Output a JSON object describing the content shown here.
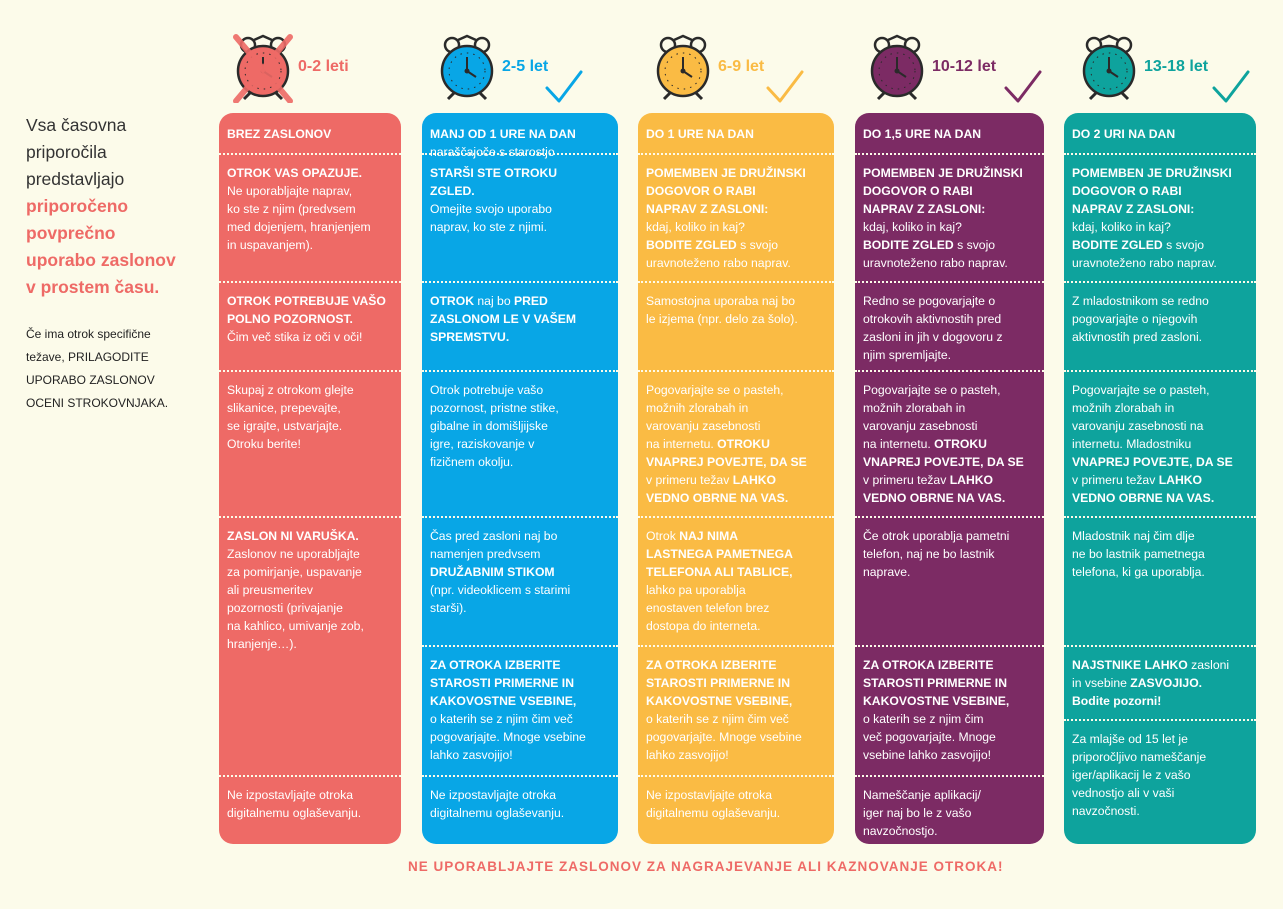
{
  "intro": {
    "lead_1": "Vsa časovna",
    "lead_2": "priporočila",
    "lead_3": "predstavljajo",
    "lead_4": "priporočeno",
    "lead_5": "povprečno",
    "lead_6": "uporabo zaslonov",
    "lead_7": "v prostem času.",
    "note_1": "Če ima otrok specifične",
    "note_2": "težave, PRILAGODITE",
    "note_3": "UPORABO ZASLONOV",
    "note_4": "OCENI STROKOVNJAKA."
  },
  "colors": {
    "c0": "#ee6a66",
    "c1": "#08a6e6",
    "c2": "#fabb44",
    "c3": "#7c2b64",
    "c4": "#0ea39d",
    "background": "#fcfbea"
  },
  "columns": [
    {
      "age": "0-2 leti",
      "icon": "crossed-alarm-clock-icon",
      "cells": [
        [
          "<b>BREZ ZASLONOV</b>"
        ],
        [
          "<b>OTROK VAS OPAZUJE.</b>",
          "Ne uporabljajte naprav,",
          "ko ste z njim (predvsem",
          "med dojenjem, hranjenjem",
          "in uspavanjem)."
        ],
        [
          "<b>OTROK POTREBUJE VAŠO</b>",
          "<b>POLNO POZORNOST.</b>",
          "Čim več stika iz oči v oči!"
        ],
        [
          "Skupaj z otrokom glejte",
          "slikanice, prepevajte,",
          "se igrajte, ustvarjajte.",
          "Otroku berite!"
        ],
        [
          "<b>ZASLON NI VARUŠKA.</b>",
          "Zaslonov ne uporabljajte",
          "za pomirjanje, uspavanje",
          "ali preusmeritev",
          "pozornosti (privajanje",
          "na kahlico, umivanje zob,",
          "hranjenje…)."
        ],
        [
          "Ne izpostavljajte otroka",
          "digitalnemu oglaševanju."
        ]
      ]
    },
    {
      "age": "2-5 let",
      "icon": "alarm-clock-icon",
      "cells": [
        [
          "<b>MANJ OD 1 URE NA DAN</b>",
          "naraščajoče s starostjo"
        ],
        [
          "<b>STARŠI STE OTROKU</b>",
          "<b>ZGLED.</b>",
          "Omejite svojo uporabo",
          "naprav, ko ste z njimi."
        ],
        [
          "<b>OTROK</b> naj bo <b>PRED</b>",
          "<b>ZASLONOM LE V VAŠEM</b>",
          "<b>SPREMSTVU.</b>"
        ],
        [
          "Otrok potrebuje vašo",
          "pozornost, pristne stike,",
          "gibalne in domišljijske",
          "igre, raziskovanje v",
          "fizičnem okolju."
        ],
        [
          "Čas pred zasloni naj bo",
          "namenjen predvsem",
          "<b>DRUŽABNIM STIKOM</b>",
          "(npr. videoklicem s starimi",
          "starši)."
        ],
        [
          "<b>ZA OTROKA IZBERITE</b>",
          "<b>STAROSTI PRIMERNE IN</b>",
          "<b>KAKOVOSTNE VSEBINE,</b>",
          "o katerih se z njim čim več",
          "pogovarjajte. Mnoge vsebine",
          "lahko zasvojijo!"
        ],
        [
          "Ne izpostavljajte otroka",
          "digitalnemu oglaševanju."
        ]
      ]
    },
    {
      "age": "6-9 let",
      "icon": "alarm-clock-icon",
      "cells": [
        [
          "<b>DO 1 URE NA DAN</b>"
        ],
        [
          "<b>POMEMBEN JE DRUŽINSKI</b>",
          "<b>DOGOVOR O RABI</b>",
          "<b>NAPRAV Z ZASLONI:</b>",
          "kdaj, koliko in kaj?",
          "<b>BODITE ZGLED</b> s svojo",
          "uravnoteženo rabo naprav."
        ],
        [
          "Samostojna uporaba naj bo",
          "le izjema (npr. delo za šolo)."
        ],
        [
          "Pogovarjajte se o pasteh,",
          "možnih zlorabah in",
          "varovanju zasebnosti",
          "na internetu. <b>OTROKU</b>",
          "<b>VNAPREJ POVEJTE, DA SE</b>",
          "v primeru težav <b>LAHKO</b>",
          "<b>VEDNO OBRNE NA VAS.</b>"
        ],
        [
          "Otrok <b>NAJ NIMA</b>",
          "<b>LASTNEGA PAMETNEGA</b>",
          "<b>TELEFONA ALI TABLICE,</b>",
          "lahko pa uporablja",
          "enostaven telefon brez",
          "dostopa do interneta."
        ],
        [
          "<b>ZA OTROKA IZBERITE</b>",
          "<b>STAROSTI PRIMERNE IN</b>",
          "<b>KAKOVOSTNE VSEBINE,</b>",
          "o katerih se z njim čim več",
          "pogovarjajte. Mnoge vsebine",
          "lahko zasvojijo!"
        ],
        [
          "Ne izpostavljajte otroka",
          "digitalnemu oglaševanju."
        ]
      ]
    },
    {
      "age": "10-12 let",
      "icon": "alarm-clock-icon",
      "cells": [
        [
          "<b>DO 1,5 URE NA DAN</b>"
        ],
        [
          "<b>POMEMBEN JE DRUŽINSKI</b>",
          "<b>DOGOVOR O RABI</b>",
          "<b>NAPRAV Z ZASLONI:</b>",
          "kdaj, koliko in kaj?",
          "<b>BODITE ZGLED</b> s svojo",
          "uravnoteženo rabo naprav."
        ],
        [
          "Redno se pogovarjajte o",
          "otrokovih aktivnostih pred",
          "zasloni in jih v dogovoru z",
          "njim spremljajte."
        ],
        [
          "Pogovarjajte se o pasteh,",
          "možnih zlorabah in",
          "varovanju zasebnosti",
          "na internetu. <b>OTROKU</b>",
          "<b>VNAPREJ POVEJTE, DA SE</b>",
          "v primeru težav <b>LAHKO</b>",
          "<b>VEDNO OBRNE NA VAS.</b>"
        ],
        [
          "Če otrok uporablja pametni",
          "telefon, naj ne bo lastnik",
          "naprave."
        ],
        [
          "<b>ZA OTROKA IZBERITE</b>",
          "<b>STAROSTI PRIMERNE IN</b>",
          "<b>KAKOVOSTNE VSEBINE,</b>",
          "o katerih se z njim čim",
          "več pogovarjajte. Mnoge",
          "vsebine lahko zasvojijo!"
        ],
        [
          "Nameščanje aplikacij/",
          "iger naj bo le z vašo",
          "navzočnostjo."
        ]
      ]
    },
    {
      "age": "13-18 let",
      "icon": "alarm-clock-icon",
      "cells": [
        [
          "<b>DO 2 URI NA DAN</b>"
        ],
        [
          "<b>POMEMBEN JE DRUŽINSKI</b>",
          "<b>DOGOVOR O RABI</b>",
          "<b>NAPRAV Z ZASLONI:</b>",
          "kdaj, koliko in kaj?",
          "<b>BODITE ZGLED</b> s svojo",
          "uravnoteženo rabo naprav."
        ],
        [
          "Z mladostnikom se redno",
          "pogovarjajte o njegovih",
          "aktivnostih pred zasloni."
        ],
        [
          "Pogovarjajte se o pasteh,",
          "možnih zlorabah in",
          "varovanju zasebnosti na",
          "internetu. Mladostniku",
          "<b>VNAPREJ POVEJTE, DA SE</b>",
          "v primeru težav <b>LAHKO</b>",
          "<b>VEDNO OBRNE NA VAS.</b>"
        ],
        [
          "Mladostnik naj čim dlje",
          "ne bo lastnik pametnega",
          "telefona, ki ga uporablja."
        ],
        [
          "<b>NAJSTNIKE LAHKO</b> zasloni",
          "in vsebine <b>ZASVOJIJO.</b>",
          "<b>Bodite pozorni!</b>"
        ],
        [
          "Za mlajše od 15 let je",
          "priporočljivo nameščanje",
          "iger/aplikacij le z vašo",
          "vednostjo ali v vaši",
          "navzočnosti."
        ]
      ]
    }
  ],
  "footer": "NE UPORABLJAJTE ZASLONOV ZA NAGRAJEVANJE ALI KAZNOVANJE OTROKA!"
}
